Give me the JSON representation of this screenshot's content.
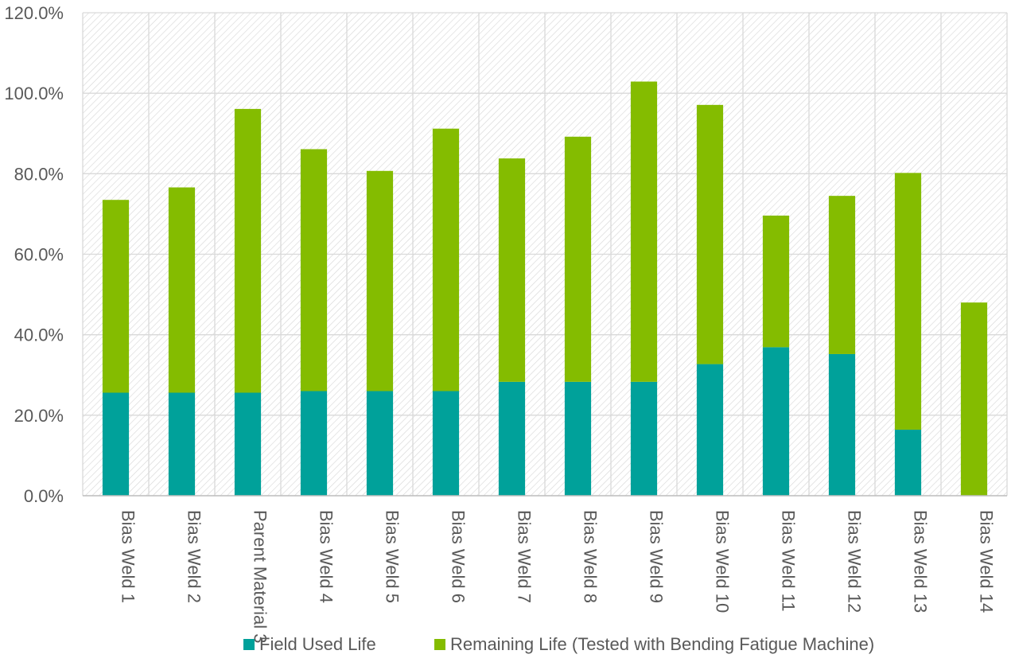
{
  "chart_data": {
    "type": "bar",
    "stacked": true,
    "categories": [
      "Bias Weld 1",
      "Bias Weld 2",
      "Parent Material 3",
      "Bias Weld 4",
      "Bias Weld 5",
      "Bias Weld 6",
      "Bias Weld 7",
      "Bias Weld 8",
      "Bias Weld 9",
      "Bias Weld 10",
      "Bias Weld 11",
      "Bias Weld 12",
      "Bias Weld 13",
      "Bias Weld 14"
    ],
    "series": [
      {
        "name": "Field Used Life",
        "color": "#00a19a",
        "values": [
          25.6,
          25.6,
          25.6,
          26.0,
          26.0,
          26.0,
          28.3,
          28.3,
          28.3,
          32.7,
          36.9,
          35.2,
          16.4,
          0.0
        ]
      },
      {
        "name": "Remaining Life (Tested with Bending Fatigue Machine)",
        "color": "#84bc00",
        "values": [
          47.9,
          51.0,
          70.5,
          60.1,
          54.7,
          65.2,
          55.5,
          60.9,
          74.6,
          64.4,
          32.7,
          39.3,
          63.8,
          48.0
        ]
      }
    ],
    "title": "",
    "xlabel": "",
    "ylabel": "",
    "ylim": [
      0,
      120
    ],
    "yticks": [
      0,
      20,
      40,
      60,
      80,
      100,
      120
    ],
    "ytick_labels": [
      "0.0%",
      "20.0%",
      "40.0%",
      "60.0%",
      "80.0%",
      "100.0%",
      "120.0%"
    ],
    "grid": true,
    "legend_position": "bottom"
  }
}
